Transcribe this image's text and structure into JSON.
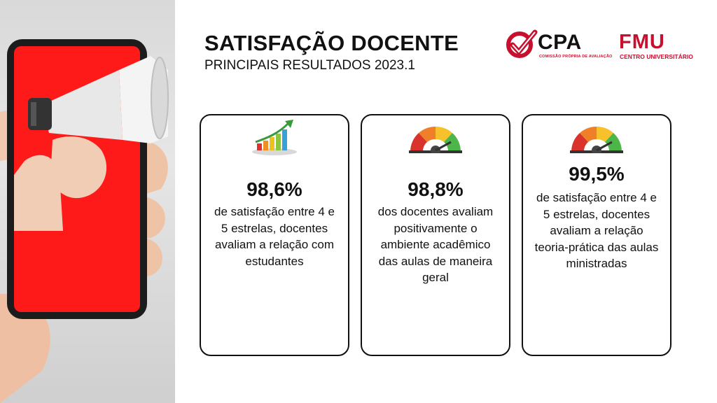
{
  "header": {
    "title": "SATISFAÇÃO DOCENTE",
    "subtitle": "PRINCIPAIS RESULTADOS 2023.1"
  },
  "logos": {
    "cpa": {
      "name": "CPA",
      "tagline": "COMISSÃO PRÓPRIA DE AVALIAÇÃO",
      "icon": "check-icon",
      "color": "#c8102e"
    },
    "fmu": {
      "name": "FMU",
      "tagline": "CENTRO UNIVERSITÁRIO",
      "color": "#c8102e"
    }
  },
  "photo": {
    "icon": "megaphone-phone-illustration",
    "screen_color": "#ff1a1a"
  },
  "cards": [
    {
      "icon": "bar-chart-growth-icon",
      "value": "98,6%",
      "description": "de satisfação entre 4 e 5 estrelas, docentes avaliam a relação com estudantes"
    },
    {
      "icon": "gauge-icon",
      "value": "98,8%",
      "description": "dos docentes avaliam positivamente o ambiente acadêmico das aulas  de maneira geral"
    },
    {
      "icon": "gauge-icon",
      "value": "99,5%",
      "description": "de satisfação entre 4 e 5 estrelas, docentes avaliam a relação teoria-prática das aulas ministradas"
    }
  ]
}
